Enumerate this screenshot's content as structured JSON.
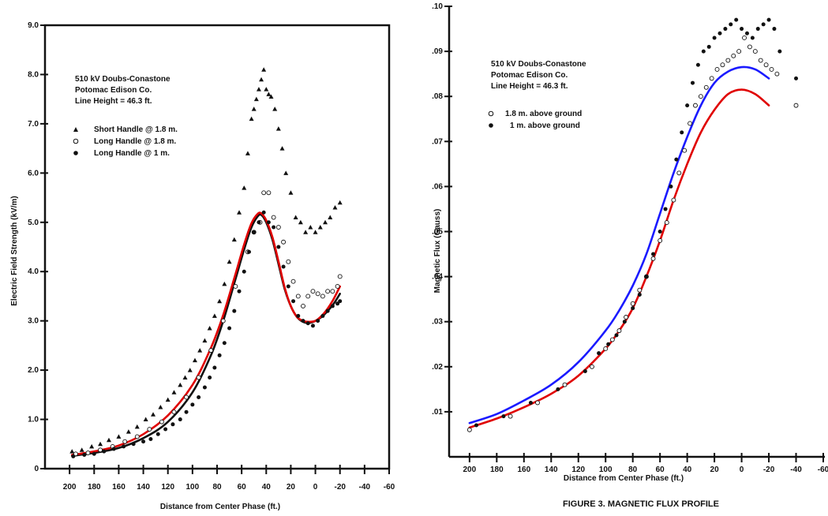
{
  "figure_caption": "FIGURE 3. MAGNETIC FLUX PROFILE",
  "chart_data": [
    {
      "type": "scatter",
      "subtype": "scatter-with-fitted-curves",
      "annotation_lines": [
        "510 kV Doubs-Conastone",
        "Potomac Edison Co.",
        "Line Height = 46.3 ft."
      ],
      "xlabel": "Distance from Center Phase (ft.)",
      "ylabel": "Electric Field Strength (kV/m)",
      "x_reversed": true,
      "xlim": [
        -60,
        220
      ],
      "ylim": [
        0,
        9
      ],
      "x_ticks": [
        200,
        180,
        160,
        140,
        120,
        100,
        80,
        60,
        40,
        20,
        0,
        -20,
        -40,
        -60
      ],
      "x_tick_labels": [
        "200",
        "180",
        "160",
        "140",
        "120",
        "100",
        "80",
        "60",
        "40",
        "20",
        "0",
        "-20",
        "-40",
        "-60"
      ],
      "y_ticks": [
        0,
        1,
        2,
        3,
        4,
        5,
        6,
        7,
        8,
        9
      ],
      "y_tick_labels": [
        "0",
        "1.0",
        "2.0",
        "3.0",
        "4.0",
        "5.0",
        "6.0",
        "7.0",
        "8.0",
        "9.0"
      ],
      "legend_position": "upper-left",
      "series": [
        {
          "name": "Short Handle @ 1.8 m.",
          "marker": "triangle",
          "x": [
            198,
            190,
            182,
            175,
            168,
            160,
            152,
            145,
            138,
            132,
            126,
            120,
            115,
            110,
            106,
            102,
            98,
            94,
            90,
            86,
            82,
            78,
            74,
            70,
            66,
            62,
            58,
            55,
            52,
            50,
            48,
            46,
            44,
            42,
            40,
            38,
            36,
            33,
            30,
            27,
            24,
            20,
            16,
            12,
            8,
            4,
            0,
            -4,
            -8,
            -12,
            -16,
            -20
          ],
          "y": [
            0.35,
            0.38,
            0.45,
            0.5,
            0.58,
            0.65,
            0.75,
            0.85,
            1.0,
            1.1,
            1.25,
            1.4,
            1.55,
            1.7,
            1.85,
            2.0,
            2.2,
            2.4,
            2.6,
            2.85,
            3.1,
            3.4,
            3.75,
            4.2,
            4.65,
            5.2,
            5.7,
            6.4,
            7.1,
            7.3,
            7.5,
            7.7,
            7.9,
            8.1,
            7.7,
            7.6,
            7.55,
            7.3,
            6.9,
            6.5,
            6.0,
            5.6,
            5.1,
            5.0,
            4.8,
            4.9,
            4.8,
            4.9,
            5.0,
            5.1,
            5.3,
            5.4
          ]
        },
        {
          "name": "Long Handle @ 1.8 m.",
          "marker": "open-circle",
          "x": [
            195,
            185,
            175,
            165,
            155,
            145,
            135,
            125,
            115,
            105,
            95,
            85,
            75,
            65,
            55,
            50,
            45,
            42,
            38,
            34,
            30,
            26,
            22,
            18,
            14,
            10,
            6,
            2,
            -2,
            -6,
            -10,
            -14,
            -18,
            -20
          ],
          "y": [
            0.3,
            0.32,
            0.38,
            0.45,
            0.55,
            0.65,
            0.8,
            0.95,
            1.15,
            1.45,
            1.85,
            2.4,
            3.0,
            3.7,
            4.4,
            4.8,
            5.0,
            5.6,
            5.6,
            5.1,
            4.9,
            4.6,
            4.2,
            3.8,
            3.5,
            3.3,
            3.5,
            3.6,
            3.55,
            3.5,
            3.6,
            3.6,
            3.7,
            3.9
          ]
        },
        {
          "name": "Long Handle @ 1 m.",
          "marker": "filled-circle",
          "x": [
            197,
            188,
            180,
            172,
            164,
            156,
            148,
            140,
            134,
            128,
            122,
            116,
            110,
            105,
            100,
            95,
            90,
            86,
            82,
            78,
            74,
            70,
            66,
            62,
            58,
            54,
            50,
            46,
            42,
            38,
            34,
            30,
            26,
            22,
            18,
            14,
            10,
            6,
            2,
            -2,
            -6,
            -10,
            -14,
            -18,
            -20
          ],
          "y": [
            0.25,
            0.28,
            0.3,
            0.35,
            0.4,
            0.45,
            0.5,
            0.55,
            0.6,
            0.7,
            0.8,
            0.9,
            1.0,
            1.15,
            1.3,
            1.45,
            1.65,
            1.85,
            2.05,
            2.3,
            2.55,
            2.85,
            3.2,
            3.6,
            4.0,
            4.4,
            4.8,
            5.0,
            5.2,
            5.0,
            4.9,
            4.5,
            4.1,
            3.7,
            3.4,
            3.1,
            3.0,
            2.95,
            2.9,
            3.0,
            3.1,
            3.2,
            3.3,
            3.35,
            3.4
          ]
        }
      ],
      "fitted_curves": [
        {
          "color": "#111111",
          "x": [
            198,
            180,
            160,
            140,
            120,
            100,
            85,
            75,
            65,
            58,
            52,
            47,
            44,
            40,
            35,
            30,
            25,
            20,
            15,
            10,
            5,
            0,
            -5,
            -10,
            -15,
            -20
          ],
          "y": [
            0.26,
            0.32,
            0.42,
            0.62,
            0.95,
            1.55,
            2.3,
            3.0,
            3.85,
            4.45,
            4.9,
            5.12,
            5.15,
            5.0,
            4.65,
            4.15,
            3.65,
            3.3,
            3.08,
            2.98,
            2.96,
            3.0,
            3.08,
            3.2,
            3.35,
            3.55
          ]
        },
        {
          "color": "#e00000",
          "x": [
            198,
            180,
            160,
            140,
            120,
            100,
            85,
            75,
            65,
            58,
            52,
            47,
            44,
            40,
            35,
            30,
            25,
            20,
            15,
            10,
            5,
            0,
            -5,
            -10,
            -15,
            -20
          ],
          "y": [
            0.28,
            0.35,
            0.47,
            0.7,
            1.08,
            1.7,
            2.45,
            3.12,
            3.95,
            4.55,
            4.98,
            5.17,
            5.18,
            5.04,
            4.7,
            4.2,
            3.68,
            3.3,
            3.08,
            3.0,
            2.98,
            3.0,
            3.1,
            3.25,
            3.45,
            3.7
          ]
        }
      ]
    },
    {
      "type": "scatter",
      "subtype": "scatter-with-fitted-curves",
      "annotation_lines": [
        "510 kV Doubs-Conastone",
        "Potomac Edison Co.",
        "Line Height = 46.3 ft."
      ],
      "xlabel": "Distance from Center Phase (ft.)",
      "ylabel": "Magnetic Flux (Gauss)",
      "x_reversed": true,
      "xlim": [
        -60,
        215
      ],
      "ylim": [
        0,
        0.1
      ],
      "x_ticks": [
        200,
        180,
        160,
        140,
        120,
        100,
        80,
        60,
        40,
        20,
        0,
        -20,
        -40,
        -60
      ],
      "x_tick_labels": [
        "200",
        "180",
        "160",
        "140",
        "120",
        "100",
        "80",
        "60",
        "40",
        "20",
        "0",
        "-20",
        "-40",
        "-60"
      ],
      "y_ticks": [
        0.01,
        0.02,
        0.03,
        0.04,
        0.05,
        0.06,
        0.07,
        0.08,
        0.09,
        0.1
      ],
      "y_tick_labels": [
        ".01",
        ".02",
        ".03",
        ".04",
        ".05",
        ".06",
        ".07",
        ".08",
        ".09",
        ".10"
      ],
      "legend_position": "upper-left",
      "series": [
        {
          "name": "1.8 m. above ground",
          "marker": "open-circle",
          "x": [
            200,
            170,
            150,
            130,
            110,
            100,
            95,
            90,
            85,
            80,
            75,
            70,
            65,
            60,
            55,
            50,
            46,
            42,
            38,
            34,
            30,
            26,
            22,
            18,
            14,
            10,
            6,
            2,
            -2,
            -6,
            -10,
            -14,
            -18,
            -22,
            -26,
            -40
          ],
          "y": [
            0.006,
            0.009,
            0.012,
            0.016,
            0.02,
            0.024,
            0.026,
            0.028,
            0.031,
            0.034,
            0.037,
            0.04,
            0.044,
            0.048,
            0.052,
            0.057,
            0.063,
            0.068,
            0.074,
            0.078,
            0.08,
            0.082,
            0.084,
            0.086,
            0.087,
            0.088,
            0.089,
            0.09,
            0.093,
            0.091,
            0.09,
            0.088,
            0.087,
            0.086,
            0.085,
            0.078
          ]
        },
        {
          "name": "1 m. above ground",
          "marker": "filled-circle",
          "x": [
            195,
            175,
            155,
            135,
            115,
            105,
            98,
            92,
            86,
            80,
            75,
            70,
            65,
            60,
            56,
            52,
            48,
            44,
            40,
            36,
            32,
            28,
            24,
            20,
            16,
            12,
            8,
            4,
            0,
            -4,
            -8,
            -12,
            -16,
            -20,
            -24,
            -28,
            -40
          ],
          "y": [
            0.007,
            0.009,
            0.012,
            0.015,
            0.019,
            0.023,
            0.025,
            0.027,
            0.03,
            0.033,
            0.036,
            0.04,
            0.045,
            0.05,
            0.055,
            0.06,
            0.066,
            0.072,
            0.078,
            0.083,
            0.087,
            0.09,
            0.091,
            0.093,
            0.094,
            0.095,
            0.096,
            0.097,
            0.095,
            0.094,
            0.093,
            0.095,
            0.096,
            0.097,
            0.095,
            0.09,
            0.084
          ]
        }
      ],
      "fitted_curves": [
        {
          "color": "#1a1aff",
          "x": [
            200,
            180,
            160,
            140,
            120,
            100,
            90,
            80,
            70,
            60,
            50,
            40,
            30,
            20,
            10,
            0,
            -10,
            -20
          ],
          "y": [
            0.0075,
            0.0095,
            0.0125,
            0.016,
            0.021,
            0.028,
            0.0325,
            0.038,
            0.045,
            0.054,
            0.063,
            0.071,
            0.078,
            0.083,
            0.0855,
            0.0865,
            0.086,
            0.084
          ]
        },
        {
          "color": "#e00000",
          "x": [
            200,
            180,
            160,
            140,
            120,
            100,
            90,
            80,
            70,
            60,
            50,
            40,
            30,
            20,
            10,
            0,
            -10,
            -20
          ],
          "y": [
            0.0065,
            0.0085,
            0.011,
            0.014,
            0.018,
            0.024,
            0.028,
            0.033,
            0.04,
            0.048,
            0.057,
            0.065,
            0.072,
            0.077,
            0.0805,
            0.0815,
            0.0805,
            0.078
          ]
        }
      ]
    }
  ]
}
